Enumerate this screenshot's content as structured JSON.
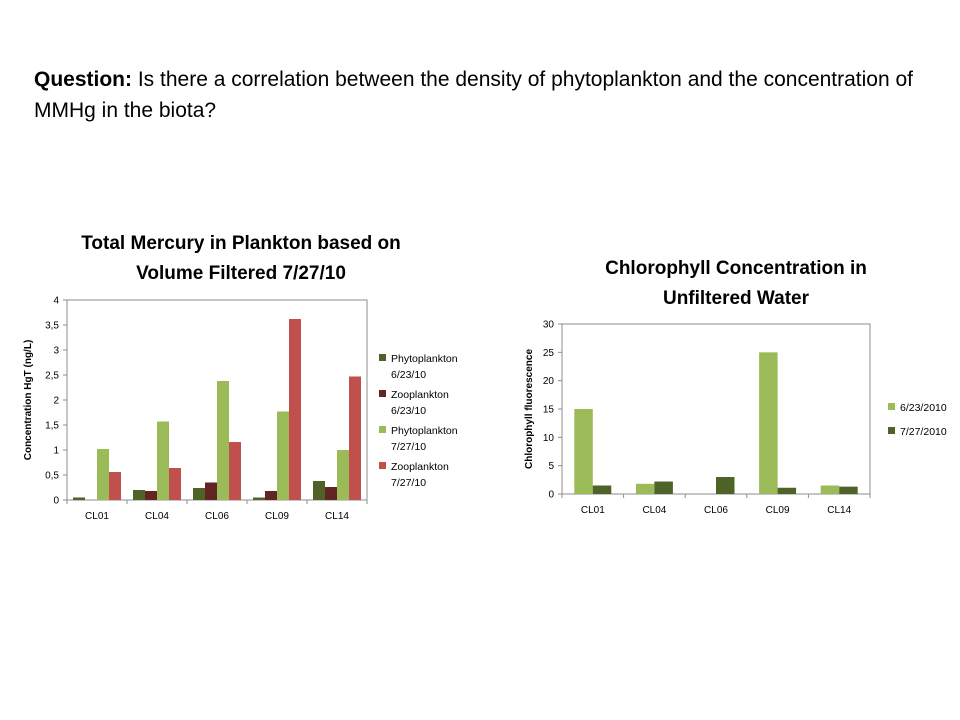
{
  "slide": {
    "question_label": "Question:",
    "question_text": "Is there a correlation between the density of phytoplankton and the concentration of MMHg in the biota?"
  },
  "chart_data": [
    {
      "type": "bar",
      "title": "Total Mercury in Plankton based on Volume Filtered 7/27/10",
      "title_lines": [
        "Total Mercury in Plankton based on",
        "Volume Filtered 7/27/10"
      ],
      "xlabel": "",
      "ylabel": "Concentration HgT (ng/L)",
      "ylim": [
        0,
        4
      ],
      "yticks": [
        "0",
        "0,5",
        "1",
        "1,5",
        "2",
        "2,5",
        "3",
        "3,5",
        "4"
      ],
      "categories": [
        "CL01",
        "CL04",
        "CL06",
        "CL09",
        "CL14"
      ],
      "grid": false,
      "legend": "right",
      "series": [
        {
          "name": "Phytoplankton 6/23/10",
          "legend_lines": [
            "Phytoplankton",
            "6/23/10"
          ],
          "color": "#4f6228",
          "values": [
            0.05,
            0.2,
            0.24,
            0.05,
            0.38
          ]
        },
        {
          "name": "Zooplankton 6/23/10",
          "legend_lines": [
            "Zooplankton",
            "6/23/10"
          ],
          "color": "#632523",
          "values": [
            0.0,
            0.18,
            0.35,
            0.18,
            0.26
          ]
        },
        {
          "name": "Phytoplankton 7/27/10",
          "legend_lines": [
            "Phytoplankton",
            "7/27/10"
          ],
          "color": "#9bbb59",
          "values": [
            1.02,
            1.57,
            2.38,
            1.77,
            1.0
          ]
        },
        {
          "name": "Zooplankton 7/27/10",
          "legend_lines": [
            "Zooplankton",
            "7/27/10"
          ],
          "color": "#c0504d",
          "values": [
            0.56,
            0.64,
            1.16,
            3.62,
            2.47
          ]
        }
      ]
    },
    {
      "type": "bar",
      "title": "Chlorophyll Concentration in Unfiltered Water",
      "title_lines": [
        "Chlorophyll Concentration in",
        "Unfiltered Water"
      ],
      "xlabel": "",
      "ylabel": "Chlorophyll fluorescence",
      "ylim": [
        0,
        30
      ],
      "yticks": [
        "0",
        "5",
        "10",
        "15",
        "20",
        "25",
        "30"
      ],
      "categories": [
        "CL01",
        "CL04",
        "CL06",
        "CL09",
        "CL14"
      ],
      "grid": false,
      "legend": "right",
      "series": [
        {
          "name": "6/23/2010",
          "legend_lines": [
            "6/23/2010"
          ],
          "color": "#9bbb59",
          "values": [
            15.0,
            1.8,
            0.0,
            25.0,
            1.5
          ]
        },
        {
          "name": "7/27/2010",
          "legend_lines": [
            "7/27/2010"
          ],
          "color": "#4f6228",
          "values": [
            1.5,
            2.2,
            3.0,
            1.1,
            1.3
          ]
        }
      ]
    }
  ]
}
